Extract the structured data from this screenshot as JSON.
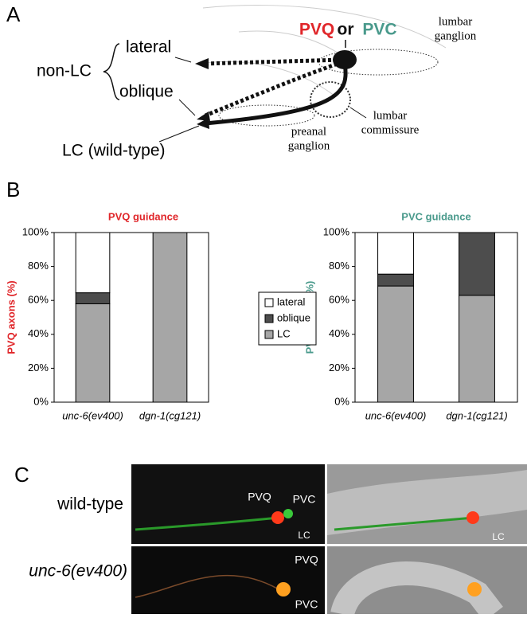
{
  "panel_a": {
    "letter": "A",
    "pvq": "PVQ",
    "or": "or",
    "pvc": "PVC",
    "lumbar_ganglion": [
      "lumbar",
      "ganglion"
    ],
    "non_lc": "non-LC",
    "lateral": "lateral",
    "oblique": "oblique",
    "lc_wild_type": "LC (wild-type)",
    "preanal_ganglion": [
      "preanal",
      "ganglion"
    ],
    "lumbar_commissure": [
      "lumbar",
      "commissure"
    ]
  },
  "panel_b": {
    "letter": "B"
  },
  "chart_data": [
    {
      "type": "bar",
      "stacked": true,
      "title": "PVQ guidance",
      "title_color": "#e0262a",
      "y_label": "PVQ axons (%)",
      "categories": [
        "unc-6(ev400)",
        "dgn-1(cg121)"
      ],
      "series": [
        {
          "name": "LC",
          "color": "#a6a6a6",
          "values": [
            58,
            100
          ]
        },
        {
          "name": "oblique",
          "color": "#4d4d4d",
          "values": [
            6.5,
            0
          ]
        },
        {
          "name": "lateral",
          "color": "#ffffff",
          "values": [
            35.5,
            0
          ]
        }
      ],
      "ylim": [
        0,
        100
      ],
      "yticks": [
        {
          "value": 0,
          "label": "0%"
        },
        {
          "value": 20,
          "label": "20%"
        },
        {
          "value": 40,
          "label": "40%"
        },
        {
          "value": 60,
          "label": "60%"
        },
        {
          "value": 80,
          "label": "80%"
        },
        {
          "value": 100,
          "label": "100%"
        }
      ]
    },
    {
      "type": "bar",
      "stacked": true,
      "title": "PVC guidance",
      "title_color": "#4a9a8c",
      "y_label": "PVC axons (%)",
      "categories": [
        "unc-6(ev400)",
        "dgn-1(cg121)"
      ],
      "series": [
        {
          "color": "#a6a6a6",
          "values": [
            68.5,
            63
          ]
        },
        {
          "color": "#4d4d4d",
          "values": [
            7,
            37
          ]
        },
        {
          "color": "#ffffff",
          "values": [
            24.5,
            0
          ]
        }
      ],
      "ylim": [
        0,
        100
      ],
      "yticks": [
        {
          "value": 0,
          "label": "0%"
        },
        {
          "value": 20,
          "label": "20%"
        },
        {
          "value": 40,
          "label": "40%"
        },
        {
          "value": 60,
          "label": "60%"
        },
        {
          "value": 80,
          "label": "80%"
        },
        {
          "value": 100,
          "label": "100%"
        }
      ]
    }
  ],
  "panel_c": {
    "letter": "C",
    "row_labels": [
      "wild-type",
      "unc-6(ev400)"
    ],
    "pvq": "PVQ",
    "pvc": "PVC",
    "lc": "LC"
  }
}
